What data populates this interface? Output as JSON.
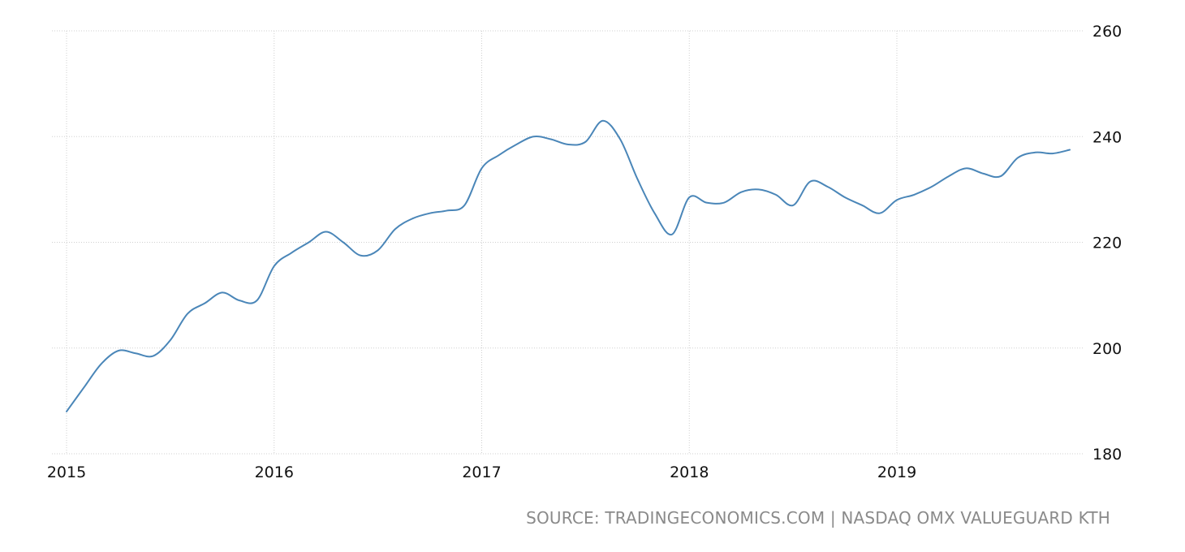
{
  "source": "SOURCE: TRADINGECONOMICS.COM | NASDAQ OMX VALUEGUARD KTH",
  "colors": {
    "series": "#4a86b8",
    "grid": "#cfcfcf",
    "source_text": "#8a8a8a"
  },
  "chart_data": {
    "type": "line",
    "title": "",
    "xlabel": "",
    "ylabel": "",
    "ylim": [
      180,
      260
    ],
    "xlim": [
      2015.0,
      2019.95
    ],
    "yticks": [
      180,
      200,
      220,
      240,
      260
    ],
    "xticks": [
      2015,
      2016,
      2017,
      2018,
      2019
    ],
    "ytick_labels": [
      "180",
      "200",
      "220",
      "240",
      "260"
    ],
    "xtick_labels": [
      "2015",
      "2016",
      "2017",
      "2018",
      "2019"
    ],
    "y_axis_side": "right",
    "grid": true,
    "legend": "none",
    "series": [
      {
        "x": [
          2015.0,
          2015.083,
          2015.167,
          2015.25,
          2015.333,
          2015.417,
          2015.5,
          2015.583,
          2015.667,
          2015.75,
          2015.833,
          2015.917,
          2016.0,
          2016.083,
          2016.167,
          2016.25,
          2016.333,
          2016.417,
          2016.5,
          2016.583,
          2016.667,
          2016.75,
          2016.833,
          2016.917,
          2017.0,
          2017.083,
          2017.167,
          2017.25,
          2017.333,
          2017.417,
          2017.5,
          2017.583,
          2017.667,
          2017.75,
          2017.833,
          2017.917,
          2018.0,
          2018.083,
          2018.167,
          2018.25,
          2018.333,
          2018.417,
          2018.5,
          2018.583,
          2018.667,
          2018.75,
          2018.833,
          2018.917,
          2019.0,
          2019.083,
          2019.167,
          2019.25,
          2019.333,
          2019.417,
          2019.5,
          2019.583,
          2019.667,
          2019.75,
          2019.833
        ],
        "values": [
          188.0,
          192.5,
          197.0,
          199.5,
          199.0,
          198.5,
          201.5,
          206.5,
          208.5,
          210.5,
          209.0,
          209.0,
          215.5,
          218.0,
          220.0,
          222.0,
          220.0,
          217.5,
          218.5,
          222.5,
          224.5,
          225.5,
          226.0,
          227.0,
          234.0,
          236.5,
          238.5,
          240.0,
          239.5,
          238.5,
          239.0,
          243.0,
          239.5,
          232.0,
          225.5,
          221.5,
          228.5,
          227.5,
          227.5,
          229.5,
          230.0,
          229.0,
          227.0,
          231.5,
          230.5,
          228.5,
          227.0,
          225.5,
          228.0,
          229.0,
          230.5,
          232.5,
          234.0,
          233.0,
          232.5,
          236.0,
          237.0,
          236.8,
          237.5
        ]
      }
    ]
  }
}
